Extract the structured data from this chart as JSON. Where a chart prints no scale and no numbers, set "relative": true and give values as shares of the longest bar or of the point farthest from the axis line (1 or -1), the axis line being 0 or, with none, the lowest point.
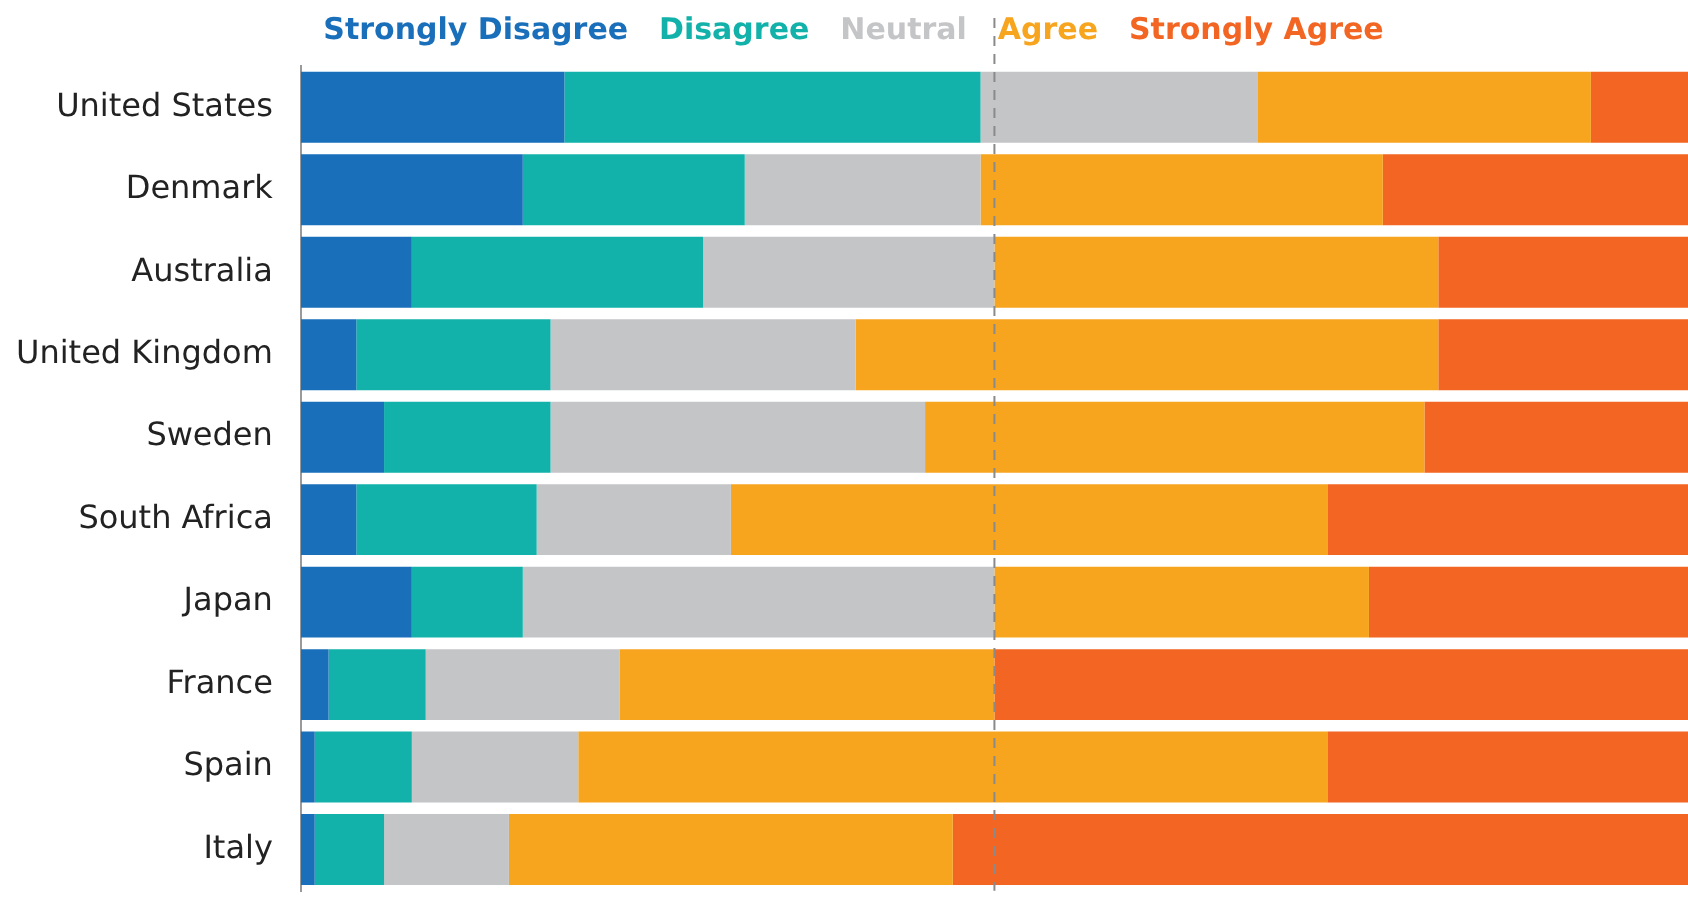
{
  "chart_data": {
    "type": "bar",
    "orientation": "horizontal",
    "stacked": true,
    "relative": true,
    "legend": "top",
    "categories": [
      "United States",
      "Denmark",
      "Australia",
      "United Kingdom",
      "Sweden",
      "South Africa",
      "Japan",
      "France",
      "Spain",
      "Italy"
    ],
    "series": [
      {
        "name": "Strongly Disagree",
        "color": "#1a6fba",
        "values": [
          0.19,
          0.16,
          0.08,
          0.04,
          0.06,
          0.04,
          0.08,
          0.02,
          0.01,
          0.01
        ]
      },
      {
        "name": "Disagree",
        "color": "#12b2aa",
        "values": [
          0.3,
          0.16,
          0.21,
          0.14,
          0.12,
          0.13,
          0.08,
          0.07,
          0.07,
          0.05
        ]
      },
      {
        "name": "Neutral",
        "color": "#c4c5c7",
        "values": [
          0.2,
          0.17,
          0.21,
          0.22,
          0.27,
          0.14,
          0.34,
          0.14,
          0.12,
          0.09
        ]
      },
      {
        "name": "Agree",
        "color": "#f7a51f",
        "values": [
          0.24,
          0.29,
          0.32,
          0.42,
          0.36,
          0.43,
          0.27,
          0.27,
          0.54,
          0.32
        ]
      },
      {
        "name": "Strongly Agree",
        "color": "#f26522",
        "values": [
          0.07,
          0.22,
          0.18,
          0.18,
          0.19,
          0.26,
          0.23,
          0.5,
          0.26,
          0.53
        ]
      }
    ],
    "ref_lines": [
      {
        "axis": "x",
        "value": 0.5,
        "color": "#8a8a8a",
        "line_style": "dashed"
      }
    ]
  }
}
